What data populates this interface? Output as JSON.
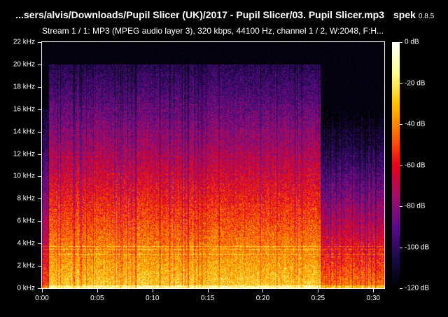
{
  "header": {
    "title": "...sers/alvis/Downloads/Pupil Slicer (UK)/2017 - Pupil Slicer/03. Pupil Slicer.mp3",
    "app_name": "spek",
    "app_version": "0.8.5",
    "stream_info": "Stream 1 / 1: MP3 (MPEG audio layer 3), 320 kbps, 44100 Hz, channel 1 / 2, W:2048, F:H..."
  },
  "chart_data": {
    "type": "heatmap",
    "xlabel": "",
    "ylabel": "",
    "x_range_seconds": [
      0,
      31
    ],
    "y_range_khz": [
      0,
      22
    ],
    "x_ticks": [
      {
        "value": 0,
        "label": "0:00"
      },
      {
        "value": 5,
        "label": "0:05"
      },
      {
        "value": 10,
        "label": "0:10"
      },
      {
        "value": 15,
        "label": "0:15"
      },
      {
        "value": 20,
        "label": "0:20"
      },
      {
        "value": 25,
        "label": "0:25"
      },
      {
        "value": 30,
        "label": "0:30"
      }
    ],
    "y_ticks": [
      {
        "value": 0,
        "label": "0 kHz"
      },
      {
        "value": 2,
        "label": "2 kHz"
      },
      {
        "value": 4,
        "label": "4 kHz"
      },
      {
        "value": 6,
        "label": "6 kHz"
      },
      {
        "value": 8,
        "label": "8 kHz"
      },
      {
        "value": 10,
        "label": "10 kHz"
      },
      {
        "value": 12,
        "label": "12 kHz"
      },
      {
        "value": 14,
        "label": "14 kHz"
      },
      {
        "value": 16,
        "label": "16 kHz"
      },
      {
        "value": 18,
        "label": "18 kHz"
      },
      {
        "value": 20,
        "label": "20 kHz"
      },
      {
        "value": 22,
        "label": "22 kHz"
      }
    ],
    "colorbar": {
      "range_db": [
        -120,
        0
      ],
      "ticks": [
        {
          "value": 0,
          "label": "0 dB"
        },
        {
          "value": -20,
          "label": "-20 dB"
        },
        {
          "value": -40,
          "label": "-40 dB"
        },
        {
          "value": -60,
          "label": "-60 dB"
        },
        {
          "value": -80,
          "label": "-80 dB"
        },
        {
          "value": -100,
          "label": "-100 dB"
        },
        {
          "value": -120,
          "label": "-120 dB"
        }
      ],
      "colors": [
        "#000000",
        "#1a0a4a",
        "#5a0a8a",
        "#a0106a",
        "#e8001c",
        "#ff6a00",
        "#ffc000",
        "#ffff90",
        "#ffffff"
      ]
    }
  }
}
